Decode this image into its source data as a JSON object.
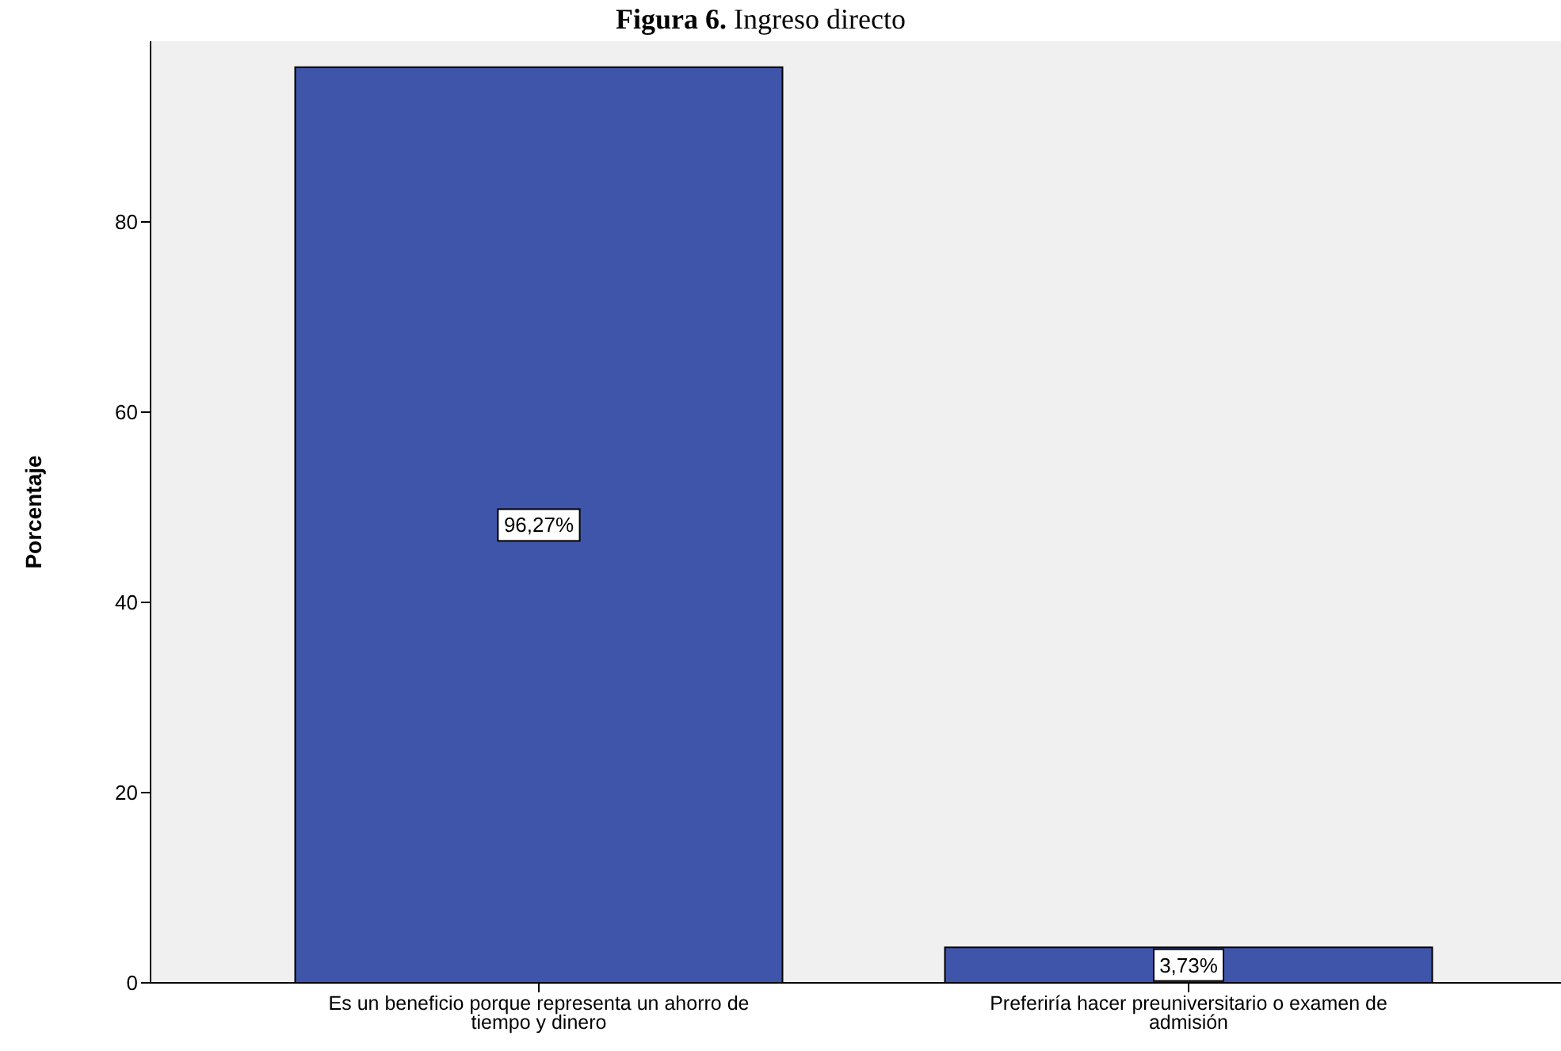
{
  "chart_data": {
    "type": "bar",
    "title": "Figura 6. Ingreso directo",
    "ylabel": "Porcentaje",
    "categories": [
      "Es un beneficio porque representa un ahorro de tiempo y dinero",
      "Preferiría hacer preuniversitario o examen de admisión"
    ],
    "values": [
      96.27,
      3.73
    ],
    "value_labels": [
      "96,27%",
      "3,73%"
    ],
    "color": "#3e55a9",
    "ylim": [
      0,
      99
    ],
    "yticks": [
      0,
      20,
      40,
      60,
      80
    ],
    "grid": false
  }
}
